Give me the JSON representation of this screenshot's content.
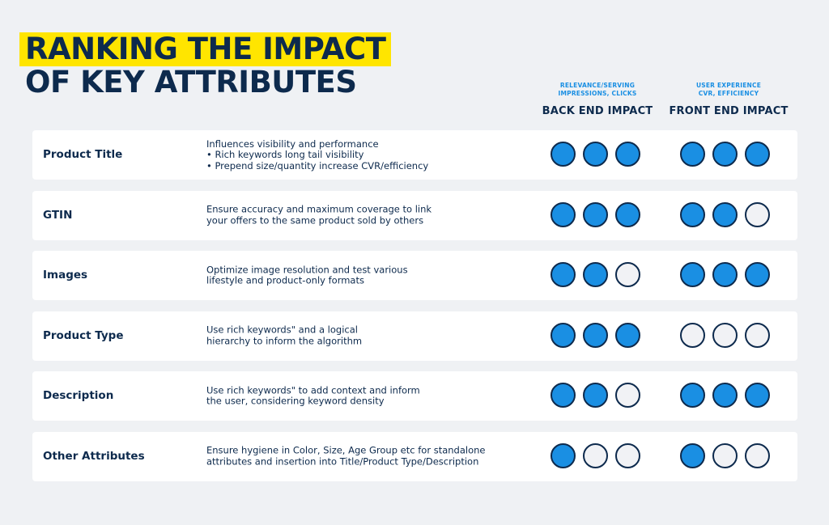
{
  "title": {
    "line1": "RANKING THE IMPACT",
    "line2": "OF KEY ATTRIBUTES"
  },
  "columns": {
    "back": {
      "sub": "RELEVANCE/SERVING\nIMPRESSIONS, CLICKS",
      "label": "BACK END IMPACT"
    },
    "front": {
      "sub": "USER EXPERIENCE\nCVR, EFFICIENCY",
      "label": "FRONT END IMPACT"
    }
  },
  "colors": {
    "accent_blue": "#1a8fe3",
    "navy": "#0d2a4d",
    "highlight": "#ffe500"
  },
  "max_score": 3,
  "rows": [
    {
      "name": "Product Title",
      "desc": [
        "Influences visibility and performance",
        "• Rich keywords long tail visibility",
        "• Prepend size/quantity increase CVR/efficiency"
      ],
      "back": 3,
      "front": 3
    },
    {
      "name": "GTIN",
      "desc": [
        "Ensure accuracy and maximum coverage to link",
        "your offers to the same product sold by others"
      ],
      "back": 3,
      "front": 2
    },
    {
      "name": "Images",
      "desc": [
        "Optimize image resolution and test various",
        "lifestyle and product-only formats"
      ],
      "back": 2,
      "front": 3
    },
    {
      "name": "Product Type",
      "desc": [
        "Use rich keywords\" and a logical",
        "hierarchy to inform the algorithm"
      ],
      "back": 3,
      "front": 0
    },
    {
      "name": "Description",
      "desc": [
        "Use rich keywords\" to add context and inform",
        "the user, considering keyword density"
      ],
      "back": 2,
      "front": 3
    },
    {
      "name": "Other Attributes",
      "desc": [
        "Ensure hygiene in Color, Size, Age Group etc for standalone",
        "attributes and insertion into Title/Product Type/Description"
      ],
      "back": 1,
      "front": 1
    }
  ]
}
